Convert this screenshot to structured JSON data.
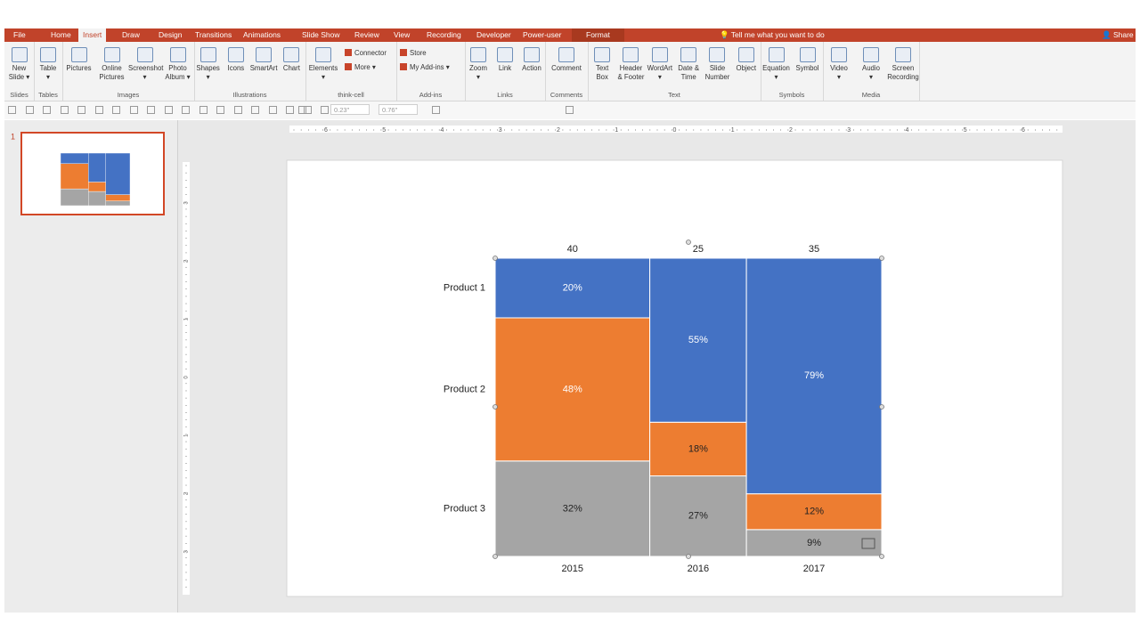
{
  "tabs": [
    "File",
    "Home",
    "Insert",
    "Draw",
    "Design",
    "Transitions",
    "Animations",
    "Slide Show",
    "Review",
    "View",
    "Recording",
    "Developer",
    "Power-user",
    "Format"
  ],
  "tell_me": "Tell me what you want to do",
  "share": "Share",
  "ribbon": [
    {
      "name": "Slides",
      "buttons": [
        "New\nSlide ▾"
      ],
      "small_buttons": []
    },
    {
      "name": "Tables",
      "buttons": [
        "Table\n▾"
      ],
      "small_buttons": []
    },
    {
      "name": "Images",
      "buttons": [
        "Pictures",
        "Online\nPictures",
        "Screenshot\n▾",
        "Photo\nAlbum ▾"
      ],
      "small_buttons": []
    },
    {
      "name": "Illustrations",
      "buttons": [
        "Shapes\n▾",
        "Icons",
        "SmartArt",
        "Chart"
      ],
      "small_buttons": []
    },
    {
      "name": "think-cell",
      "buttons": [
        "Elements\n▾"
      ],
      "small_buttons": [
        "Connector",
        "More ▾"
      ]
    },
    {
      "name": "Add-ins",
      "buttons": [],
      "small_buttons": [
        "Store",
        "My Add-ins ▾"
      ]
    },
    {
      "name": "Links",
      "buttons": [
        "Zoom\n▾",
        "Link",
        "Action"
      ],
      "small_buttons": []
    },
    {
      "name": "Comments",
      "buttons": [
        "Comment"
      ],
      "small_buttons": []
    },
    {
      "name": "Text",
      "buttons": [
        "Text\nBox",
        "Header\n& Footer",
        "WordArt\n▾",
        "Date &\nTime",
        "Slide\nNumber",
        "Object"
      ],
      "small_buttons": []
    },
    {
      "name": "Symbols",
      "buttons": [
        "Equation\n▾",
        "Symbol"
      ],
      "small_buttons": []
    },
    {
      "name": "Media",
      "buttons": [
        "Video\n▾",
        "Audio\n▾",
        "Screen\nRecording"
      ],
      "small_buttons": []
    }
  ],
  "toolbar_fields": [
    "0.23\"",
    "0.76\""
  ],
  "ruler": {
    "horizontal": [
      6,
      5,
      4,
      3,
      2,
      1,
      0,
      1,
      2,
      3,
      4,
      5,
      6
    ],
    "vertical": [
      3,
      2,
      1,
      0,
      1,
      2,
      3
    ]
  },
  "slide_number": 1,
  "chart_data": {
    "type": "mekko",
    "categories": [
      "2015",
      "2016",
      "2017"
    ],
    "widths": [
      40,
      25,
      35
    ],
    "series": [
      {
        "name": "Product 1",
        "color": "#4472c4",
        "values": [
          20,
          55,
          79
        ],
        "value_labels": [
          "20%",
          "55%",
          "79%"
        ]
      },
      {
        "name": "Product 2",
        "color": "#ed7d31",
        "values": [
          48,
          18,
          12
        ],
        "value_labels": [
          "48%",
          "18%",
          "12%"
        ]
      },
      {
        "name": "Product 3",
        "color": "#a5a5a5",
        "values": [
          32,
          27,
          9
        ],
        "value_labels": [
          "32%",
          "27%",
          "9%"
        ]
      }
    ]
  }
}
